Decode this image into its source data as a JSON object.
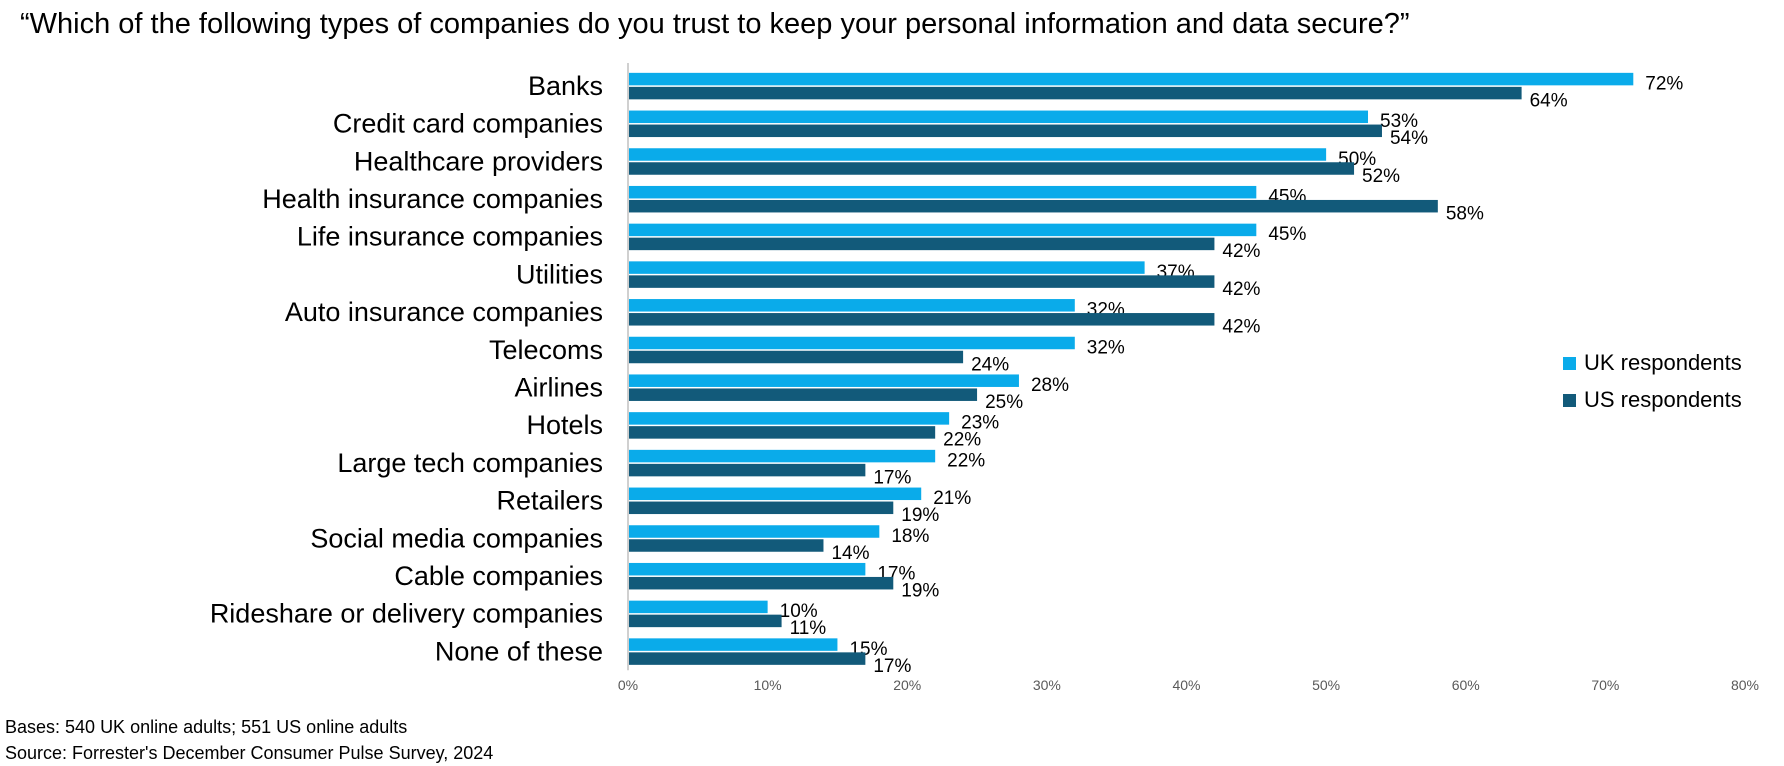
{
  "title": "“Which of the following types of companies do you trust to keep your personal information and data secure?”",
  "footnotes": [
    "Bases: 540 UK online adults; 551 US online adults",
    "Source: Forrester's December Consumer Pulse Survey, 2024"
  ],
  "chart_data": {
    "type": "bar",
    "orientation": "horizontal",
    "categories": [
      "Banks",
      "Credit card companies",
      "Healthcare providers",
      "Health insurance companies",
      "Life insurance companies",
      "Utilities",
      "Auto insurance companies",
      "Telecoms",
      "Airlines",
      "Hotels",
      "Large tech companies",
      "Retailers",
      "Social media companies",
      "Cable companies",
      "Rideshare or delivery companies",
      "None of these"
    ],
    "series": [
      {
        "name": "UK respondents",
        "color": "#0AABEA",
        "values": [
          72,
          53,
          50,
          45,
          45,
          37,
          32,
          32,
          28,
          23,
          22,
          21,
          18,
          17,
          10,
          15
        ]
      },
      {
        "name": "US respondents",
        "color": "#125A7A",
        "values": [
          64,
          54,
          52,
          58,
          42,
          42,
          42,
          24,
          25,
          22,
          17,
          19,
          14,
          19,
          11,
          17
        ]
      }
    ],
    "xlim": [
      0,
      80
    ],
    "xticks": [
      "0%",
      "10%",
      "20%",
      "30%",
      "40%",
      "50%",
      "60%",
      "70%",
      "80%"
    ],
    "legend": "right",
    "grid": false
  }
}
